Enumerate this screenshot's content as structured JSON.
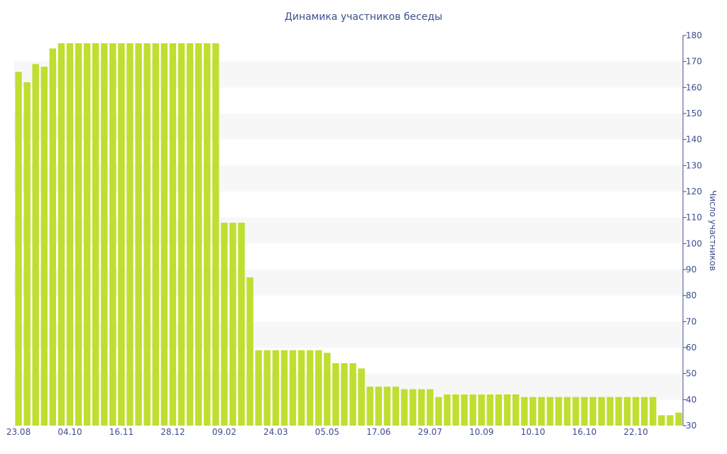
{
  "chart_data": {
    "type": "bar",
    "title": "Динамика участников беседы",
    "xlabel": "",
    "ylabel": "Число участников",
    "y_axis_side": "right",
    "ylim": [
      30,
      180
    ],
    "yticks": [
      30,
      40,
      50,
      60,
      70,
      80,
      90,
      100,
      110,
      120,
      130,
      140,
      150,
      160,
      170,
      180
    ],
    "grid": "alternating horizontal bands",
    "xtick_labels": [
      {
        "index": 0,
        "label": "23.08"
      },
      {
        "index": 6,
        "label": "04.10"
      },
      {
        "index": 12,
        "label": "16.11"
      },
      {
        "index": 18,
        "label": "28.12"
      },
      {
        "index": 24,
        "label": "09.02"
      },
      {
        "index": 30,
        "label": "24.03"
      },
      {
        "index": 36,
        "label": "05.05"
      },
      {
        "index": 42,
        "label": "17.06"
      },
      {
        "index": 48,
        "label": "29.07"
      },
      {
        "index": 54,
        "label": "10.09"
      },
      {
        "index": 60,
        "label": "10.10"
      },
      {
        "index": 66,
        "label": "16.10"
      },
      {
        "index": 72,
        "label": "22.10"
      }
    ],
    "values": [
      166,
      162,
      169,
      168,
      175,
      177,
      177,
      177,
      177,
      177,
      177,
      177,
      177,
      177,
      177,
      177,
      177,
      177,
      177,
      177,
      177,
      177,
      177,
      177,
      108,
      108,
      108,
      87,
      59,
      59,
      59,
      59,
      59,
      59,
      59,
      59,
      58,
      54,
      54,
      54,
      52,
      45,
      45,
      45,
      45,
      44,
      44,
      44,
      44,
      41,
      42,
      42,
      42,
      42,
      42,
      42,
      42,
      42,
      42,
      41,
      41,
      41,
      41,
      41,
      41,
      41,
      41,
      41,
      41,
      41,
      41,
      41,
      41,
      41,
      41,
      34,
      34,
      35
    ],
    "colors": {
      "bar": "#bedf2f",
      "text": "#3c4e8c",
      "band": "#f7f7f7"
    }
  }
}
